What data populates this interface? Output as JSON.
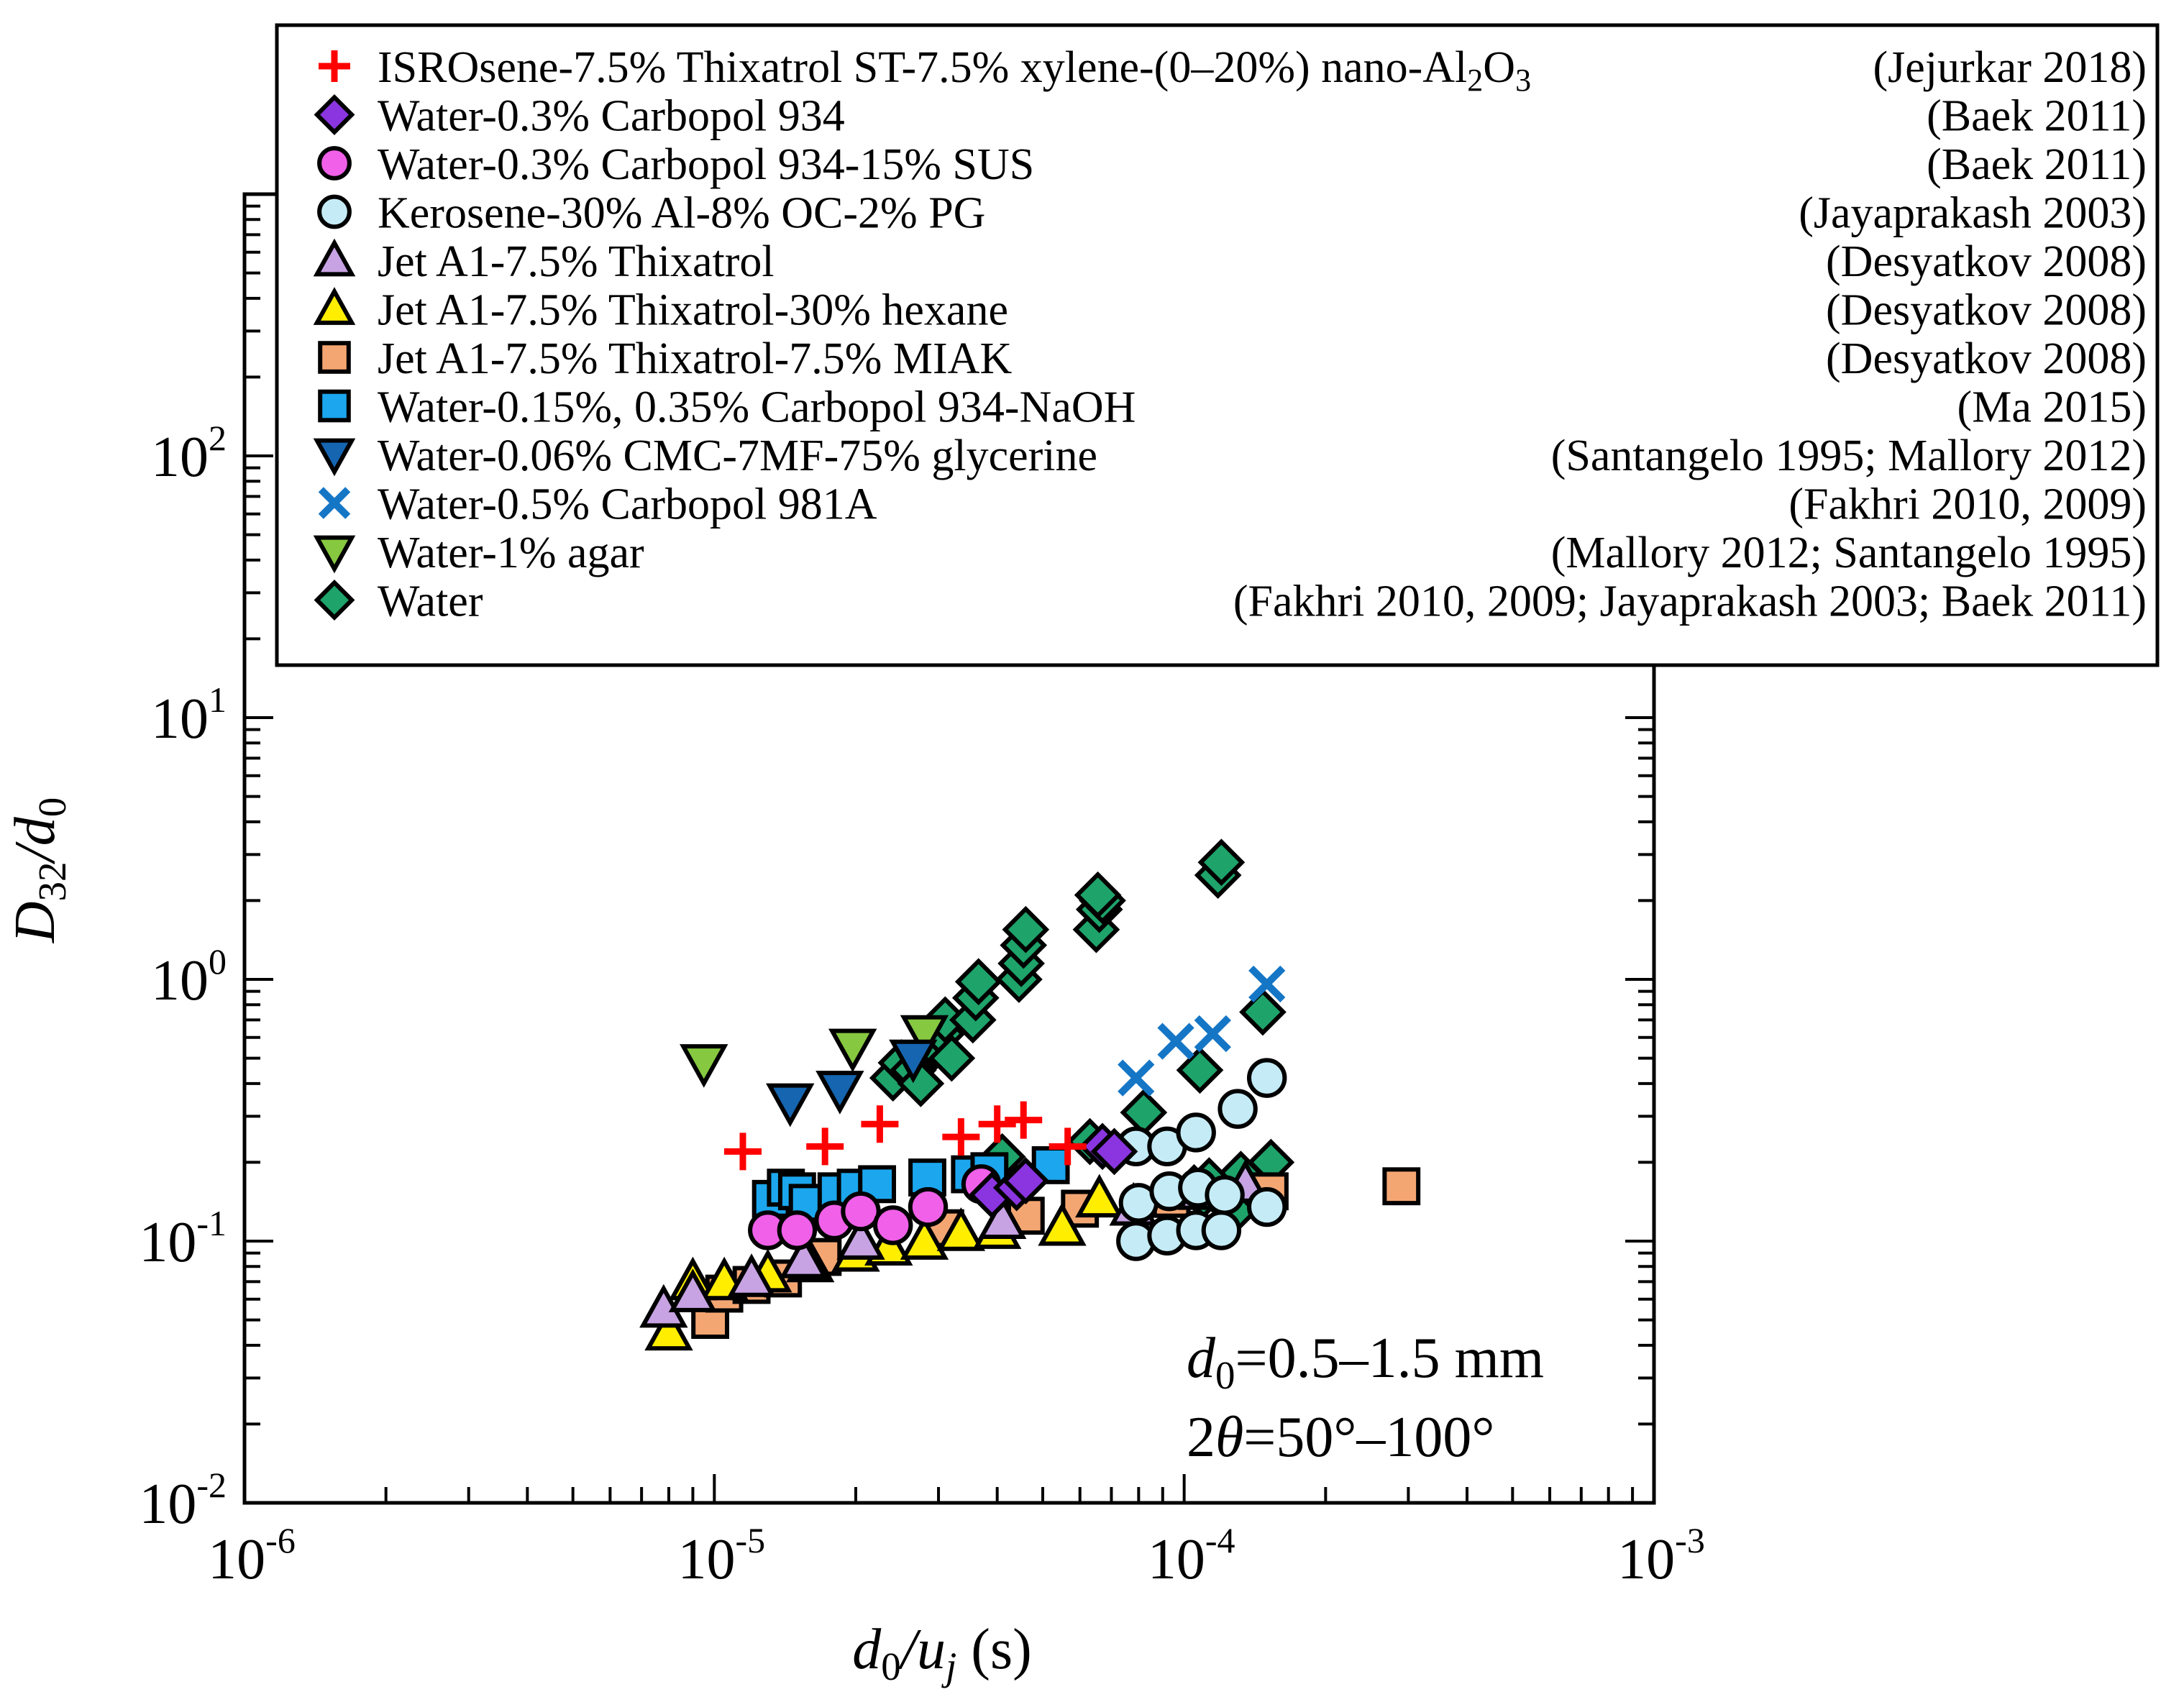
{
  "chart_data": {
    "type": "scatter",
    "xscale": "log",
    "yscale": "log",
    "xlim": [
      1e-06,
      0.001
    ],
    "ylim": [
      0.01,
      1000
    ],
    "x_ticks": [
      {
        "value": 1e-06,
        "base": "10",
        "exp": "-6"
      },
      {
        "value": 1e-05,
        "base": "10",
        "exp": "-5"
      },
      {
        "value": 0.0001,
        "base": "10",
        "exp": "-4"
      },
      {
        "value": 0.001,
        "base": "10",
        "exp": "-3"
      }
    ],
    "y_ticks": [
      {
        "value": 0.01,
        "base": "10",
        "exp": "-2"
      },
      {
        "value": 0.1,
        "base": "10",
        "exp": "-1"
      },
      {
        "value": 1,
        "base": "10",
        "exp": "0"
      },
      {
        "value": 10,
        "base": "10",
        "exp": "1"
      },
      {
        "value": 100,
        "base": "10",
        "exp": "2"
      }
    ],
    "xlabel": {
      "main": "d",
      "sub1": "0",
      "slash": "/u",
      "sub2": "j",
      "unit": " (s)"
    },
    "ylabel": {
      "main": "D",
      "sub1": "32",
      "slash": "/d",
      "sub2": "0"
    },
    "annotation": {
      "line1": {
        "a": "d",
        "sub": "0",
        "b": "=0.5–1.5 mm"
      },
      "line2": {
        "a": "2",
        "theta": "θ",
        "b": "=50°–100°"
      }
    },
    "series": [
      {
        "name": "ISROsene-7.5% Thixatrol ST-7.5% xylene-(0–20%) nano-Al",
        "name_sub1": "2",
        "name_mid": "O",
        "name_sub2": "3",
        "ref": "(Jejurkar 2018)",
        "marker": "plus",
        "color": "#ff0000",
        "x": [
          1.15e-05,
          1.72e-05,
          2.25e-05,
          3.35e-05,
          4e-05,
          4.55e-05,
          5.65e-05
        ],
        "y": [
          0.22,
          0.23,
          0.28,
          0.25,
          0.28,
          0.29,
          0.23
        ]
      },
      {
        "name": "Water-0.3% Carbopol 934",
        "ref": "(Baek 2011)",
        "marker": "diamond",
        "color": "#8a35e0",
        "x": [
          3.9e-05,
          4.4e-05,
          4.6e-05,
          6.7e-05,
          7.1e-05
        ],
        "y": [
          0.15,
          0.16,
          0.17,
          0.23,
          0.22
        ]
      },
      {
        "name": "Water-0.3% Carbopol 934-15% SUS",
        "ref": "(Baek 2011)",
        "marker": "circle",
        "color": "#f060e8",
        "x": [
          1.3e-05,
          1.5e-05,
          1.8e-05,
          2.05e-05,
          2.4e-05,
          2.85e-05,
          3.7e-05
        ],
        "y": [
          0.11,
          0.11,
          0.12,
          0.13,
          0.115,
          0.135,
          0.165
        ]
      },
      {
        "name": "Kerosene-30% Al-8% OC-2% PG",
        "ref": "(Jayaprakash 2003)",
        "marker": "circle",
        "color": "#c5ecf6",
        "x": [
          7.9e-05,
          9.2e-05,
          0.000106,
          0.00013,
          0.00015,
          7.9e-05,
          9.2e-05,
          0.000106,
          0.00012,
          0.00015,
          8e-05,
          9.3e-05,
          0.000107,
          0.000122
        ],
        "y": [
          0.23,
          0.23,
          0.26,
          0.32,
          0.42,
          0.1,
          0.105,
          0.11,
          0.11,
          0.135,
          0.14,
          0.155,
          0.16,
          0.15
        ]
      },
      {
        "name": "Jet A1-7.5% Thixatrol",
        "ref": "(Desyatkov 2008)",
        "marker": "tri_up",
        "color": "#c7a3e3",
        "x": [
          7.8e-06,
          9e-06,
          1.2e-05,
          1.55e-05,
          2.05e-05,
          4.1e-05,
          7.8e-05,
          0.000109,
          0.000135
        ],
        "y": [
          0.055,
          0.063,
          0.072,
          0.085,
          0.1,
          0.12,
          0.135,
          0.155,
          0.165
        ]
      },
      {
        "name": "Jet A1-7.5% Thixatrol-30% hexane",
        "ref": "(Desyatkov 2008)",
        "marker": "tri_up",
        "color": "#ffee00",
        "x": [
          8e-06,
          9e-06,
          1.05e-05,
          1.3e-05,
          1.6e-05,
          2e-05,
          2.35e-05,
          2.8e-05,
          3.35e-05,
          4e-05,
          5.5e-05,
          6.6e-05
        ],
        "y": [
          0.045,
          0.07,
          0.07,
          0.075,
          0.082,
          0.09,
          0.095,
          0.1,
          0.108,
          0.11,
          0.113,
          0.145
        ]
      },
      {
        "name": "Jet A1-7.5% Thixatrol-7.5% MIAK",
        "ref": "(Desyatkov 2008)",
        "marker": "square",
        "color": "#f4a672",
        "x": [
          9.8e-06,
          1.05e-05,
          1.2e-05,
          1.4e-05,
          1.7e-05,
          3.1e-05,
          4.6e-05,
          6e-05,
          9.4e-05,
          0.000152,
          0.00029
        ],
        "y": [
          0.05,
          0.063,
          0.068,
          0.072,
          0.087,
          0.112,
          0.125,
          0.133,
          0.145,
          0.155,
          0.162
        ]
      },
      {
        "name": "Water-0.15%, 0.35% Carbopol 934-NaOH",
        "ref": "(Ma 2015)",
        "marker": "square",
        "color": "#1ba6ed",
        "x": [
          1.32e-05,
          1.42e-05,
          1.5e-05,
          1.58e-05,
          1.82e-05,
          2e-05,
          2.22e-05,
          2.84e-05,
          3.5e-05,
          3.85e-05,
          5.2e-05
        ],
        "y": [
          0.145,
          0.16,
          0.155,
          0.14,
          0.155,
          0.16,
          0.165,
          0.175,
          0.18,
          0.185,
          0.195
        ]
      },
      {
        "name": "Water-0.06% CMC-7MF-75% glycerine",
        "ref": "(Santangelo 1995; Mallory 2012)",
        "marker": "tri_down",
        "color": "#1565b0",
        "x": [
          1.45e-05,
          1.85e-05,
          2.65e-05
        ],
        "y": [
          0.34,
          0.38,
          0.5
        ]
      },
      {
        "name": "Water-0.5% Carbopol 981A",
        "ref": "(Fakhri 2010, 2009)",
        "marker": "cross",
        "color": "#1576c6",
        "x": [
          7.9e-05,
          9.6e-05,
          0.000115,
          0.00015
        ],
        "y": [
          0.42,
          0.58,
          0.62,
          0.96
        ]
      },
      {
        "name": "Water-1% agar",
        "ref": "(Mallory 2012; Santangelo 1995)",
        "marker": "tri_down",
        "color": "#86c840",
        "x": [
          9.5e-06,
          1.97e-05,
          2.8e-05
        ],
        "y": [
          0.48,
          0.55,
          0.62
        ]
      },
      {
        "name": "Water",
        "ref": "(Fakhri 2010, 2009; Jayaprakash 2003; Baek 2011)",
        "marker": "diamond",
        "color": "#1ea36a",
        "x": [
          2.4e-05,
          2.5e-05,
          2.65e-05,
          2.75e-05,
          2.95e-05,
          3.05e-05,
          3.1e-05,
          3.2e-05,
          3.55e-05,
          3.6e-05,
          3.65e-05,
          4.45e-05,
          4.5e-05,
          4.55e-05,
          4.6e-05,
          6.5e-05,
          6.6e-05,
          6.7e-05,
          6.55e-05,
          8.2e-05,
          0.000108,
          0.000118,
          0.00012,
          0.000147,
          4.1e-05,
          6.3e-05,
          0.000105,
          0.000132,
          0.000153,
          0.000128,
          0.00011,
          0.000113
        ],
        "y": [
          0.42,
          0.48,
          0.45,
          0.4,
          0.55,
          0.62,
          0.7,
          0.5,
          0.7,
          0.85,
          0.98,
          1.0,
          1.15,
          1.35,
          1.55,
          1.55,
          1.85,
          2.0,
          2.1,
          0.31,
          0.45,
          2.5,
          2.8,
          0.75,
          0.21,
          0.24,
          0.16,
          0.18,
          0.2,
          0.13,
          0.15,
          0.17
        ]
      }
    ]
  }
}
